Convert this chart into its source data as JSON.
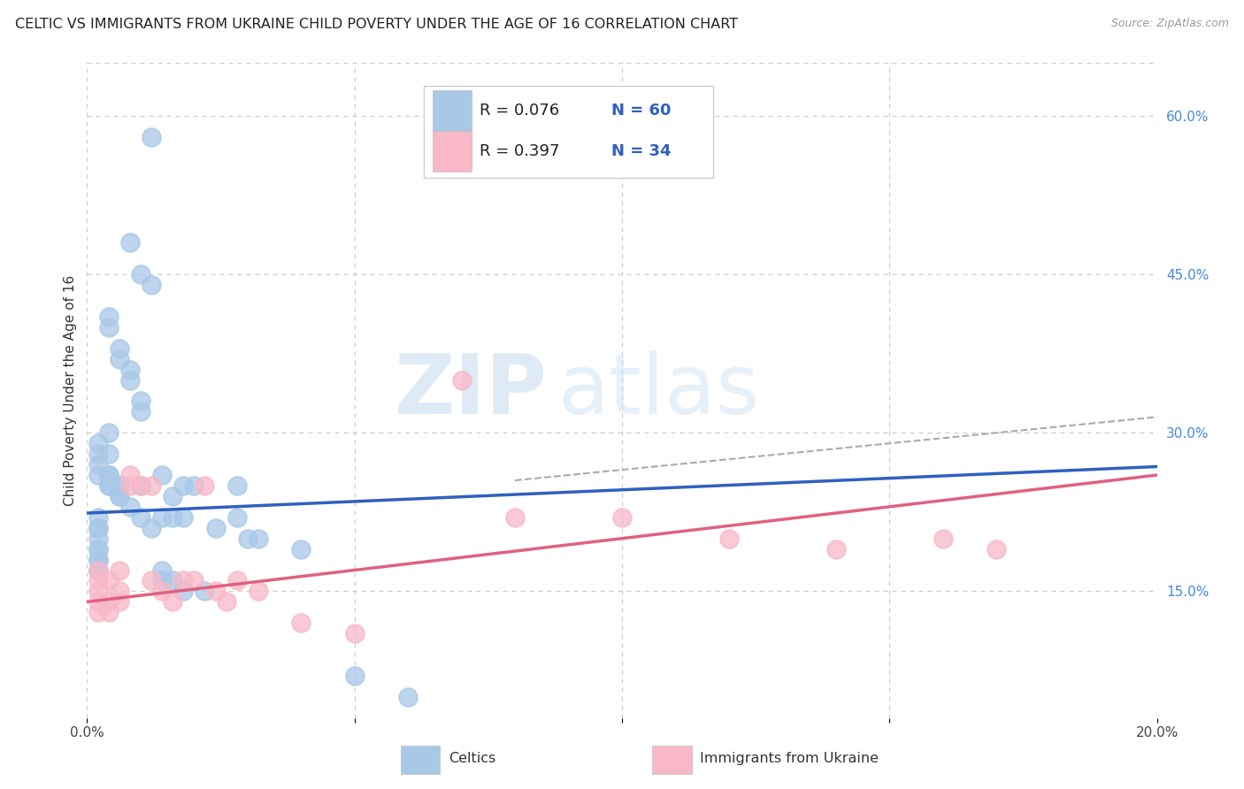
{
  "title": "CELTIC VS IMMIGRANTS FROM UKRAINE CHILD POVERTY UNDER THE AGE OF 16 CORRELATION CHART",
  "source": "Source: ZipAtlas.com",
  "ylabel": "Child Poverty Under the Age of 16",
  "xlim": [
    0.0,
    0.2
  ],
  "ylim": [
    0.03,
    0.65
  ],
  "xtick_positions": [
    0.0,
    0.05,
    0.1,
    0.15,
    0.2
  ],
  "right_yticks": [
    0.15,
    0.3,
    0.45,
    0.6
  ],
  "right_yticklabels": [
    "15.0%",
    "30.0%",
    "45.0%",
    "60.0%"
  ],
  "celtics_color": "#a8c8e8",
  "ukraine_color": "#f8b8c8",
  "celtics_line_color": "#3060c0",
  "ukraine_line_color": "#e06080",
  "legend_r1": "R = 0.076",
  "legend_n1": "N = 60",
  "legend_r2": "R = 0.397",
  "legend_n2": "N = 34",
  "legend_label1": "Celtics",
  "legend_label2": "Immigrants from Ukraine",
  "watermark_zip": "ZIP",
  "watermark_atlas": "atlas",
  "celtics_x": [
    0.012,
    0.008,
    0.01,
    0.012,
    0.004,
    0.004,
    0.006,
    0.006,
    0.008,
    0.008,
    0.01,
    0.01,
    0.004,
    0.002,
    0.002,
    0.002,
    0.002,
    0.004,
    0.004,
    0.004,
    0.006,
    0.006,
    0.006,
    0.008,
    0.002,
    0.002,
    0.002,
    0.004,
    0.002,
    0.002,
    0.002,
    0.002,
    0.004,
    0.006,
    0.01,
    0.014,
    0.016,
    0.018,
    0.018,
    0.02,
    0.016,
    0.014,
    0.01,
    0.012,
    0.024,
    0.028,
    0.03,
    0.032,
    0.04,
    0.028,
    0.002,
    0.002,
    0.002,
    0.014,
    0.014,
    0.016,
    0.018,
    0.022,
    0.05,
    0.06
  ],
  "celtics_y": [
    0.58,
    0.48,
    0.45,
    0.44,
    0.41,
    0.4,
    0.38,
    0.37,
    0.36,
    0.35,
    0.33,
    0.32,
    0.3,
    0.29,
    0.28,
    0.27,
    0.26,
    0.26,
    0.25,
    0.25,
    0.25,
    0.24,
    0.24,
    0.23,
    0.22,
    0.21,
    0.21,
    0.28,
    0.2,
    0.19,
    0.19,
    0.18,
    0.26,
    0.25,
    0.25,
    0.26,
    0.24,
    0.25,
    0.22,
    0.25,
    0.22,
    0.22,
    0.22,
    0.21,
    0.21,
    0.22,
    0.2,
    0.2,
    0.19,
    0.25,
    0.18,
    0.17,
    0.17,
    0.17,
    0.16,
    0.16,
    0.15,
    0.15,
    0.07,
    0.05
  ],
  "ukraine_x": [
    0.002,
    0.002,
    0.002,
    0.002,
    0.002,
    0.004,
    0.004,
    0.004,
    0.006,
    0.006,
    0.006,
    0.008,
    0.008,
    0.01,
    0.012,
    0.012,
    0.014,
    0.016,
    0.018,
    0.02,
    0.022,
    0.024,
    0.026,
    0.028,
    0.032,
    0.04,
    0.05,
    0.07,
    0.08,
    0.1,
    0.12,
    0.14,
    0.16,
    0.17
  ],
  "ukraine_y": [
    0.17,
    0.16,
    0.15,
    0.14,
    0.13,
    0.16,
    0.14,
    0.13,
    0.17,
    0.15,
    0.14,
    0.26,
    0.25,
    0.25,
    0.25,
    0.16,
    0.15,
    0.14,
    0.16,
    0.16,
    0.25,
    0.15,
    0.14,
    0.16,
    0.15,
    0.12,
    0.11,
    0.35,
    0.22,
    0.22,
    0.2,
    0.19,
    0.2,
    0.19
  ],
  "celtics_line_x": [
    0.0,
    0.2
  ],
  "celtics_line_y": [
    0.224,
    0.268
  ],
  "ukraine_line_x": [
    0.0,
    0.2
  ],
  "ukraine_line_y": [
    0.14,
    0.26
  ],
  "ukraine_ext_line_x": [
    0.1,
    0.2
  ],
  "ukraine_ext_line_y": [
    0.255,
    0.31
  ],
  "grid_color": "#cccccc",
  "background_color": "#ffffff",
  "title_fontsize": 11.5,
  "axis_label_fontsize": 11,
  "tick_fontsize": 11,
  "legend_fontsize": 13
}
